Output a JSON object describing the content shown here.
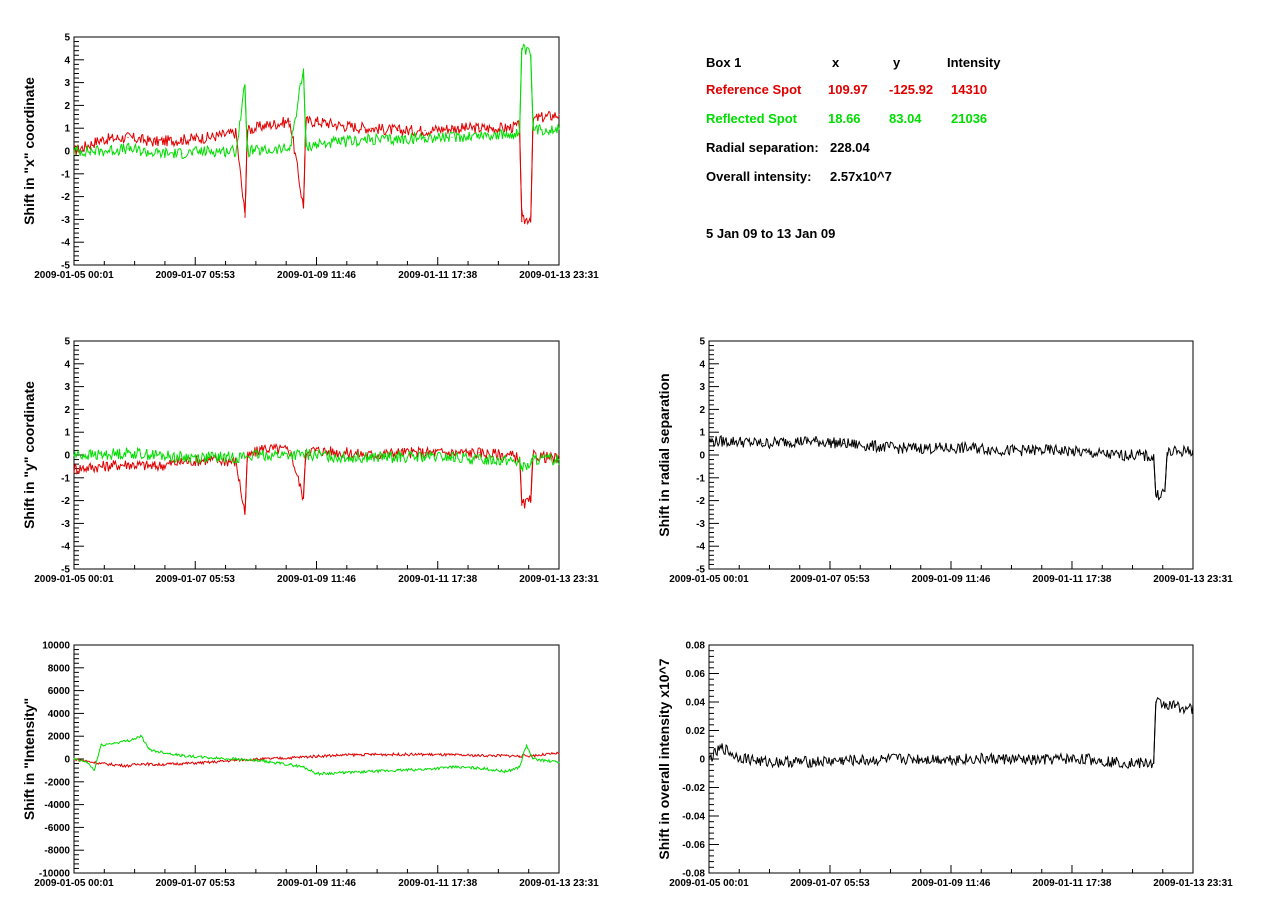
{
  "info": {
    "box_label": "Box 1",
    "col_x": "x",
    "col_y": "y",
    "col_intensity": "Intensity",
    "reference": {
      "label": "Reference Spot",
      "x": "109.97",
      "y": "-125.92",
      "intensity": "14310"
    },
    "reflected": {
      "label": "Reflected Spot",
      "x": "18.66",
      "y": "83.04",
      "intensity": "21036"
    },
    "radial_label": "Radial separation:",
    "radial_value": "228.04",
    "overall_label": "Overall intensity:",
    "overall_value": "2.57x10^7",
    "date_range": "5 Jan 09 to 13 Jan 09"
  },
  "colors": {
    "reference": "#e00000",
    "reflected": "#00dd00",
    "single": "#000000"
  },
  "chart_data": [
    {
      "id": "x-shift",
      "type": "line",
      "ylabel": "Shift in \"x\" coordinate",
      "ylim": [
        -5,
        5
      ],
      "yticks": [
        -5,
        -4,
        -3,
        -2,
        -1,
        0,
        1,
        2,
        3,
        4,
        5
      ],
      "xlim": [
        "2009-01-05 00:01",
        "2009-01-13 23:31"
      ],
      "xticks": [
        "2009-01-05 00:01",
        "2009-01-07 05:53",
        "2009-01-09 11:46",
        "2009-01-11 17:38",
        "2009-01-13 23:31"
      ],
      "series": [
        {
          "color": "#e00000",
          "points": [
            [
              "2009-01-05 00:01",
              0.0
            ],
            [
              "2009-01-05 12:00",
              0.5
            ],
            [
              "2009-01-06 00:00",
              0.6
            ],
            [
              "2009-01-06 12:00",
              0.4
            ],
            [
              "2009-01-07 00:00",
              0.5
            ],
            [
              "2009-01-07 12:00",
              0.6
            ],
            [
              "2009-01-08 00:00",
              0.8
            ],
            [
              "2009-01-08 04:00",
              -2.9
            ],
            [
              "2009-01-08 05:00",
              0.9
            ],
            [
              "2009-01-08 12:00",
              1.1
            ],
            [
              "2009-01-09 00:00",
              1.3
            ],
            [
              "2009-01-09 06:00",
              -2.5
            ],
            [
              "2009-01-09 07:00",
              1.3
            ],
            [
              "2009-01-09 12:00",
              1.3
            ],
            [
              "2009-01-10 00:00",
              1.1
            ],
            [
              "2009-01-10 12:00",
              1.0
            ],
            [
              "2009-01-11 00:00",
              0.9
            ],
            [
              "2009-01-11 12:00",
              0.9
            ],
            [
              "2009-01-12 00:00",
              1.0
            ],
            [
              "2009-01-12 12:00",
              1.0
            ],
            [
              "2009-01-13 00:00",
              1.0
            ],
            [
              "2009-01-13 06:00",
              1.1
            ],
            [
              "2009-01-13 07:00",
              -3.1
            ],
            [
              "2009-01-13 11:00",
              -2.9
            ],
            [
              "2009-01-13 12:00",
              1.4
            ],
            [
              "2009-01-13 23:31",
              1.6
            ]
          ]
        },
        {
          "color": "#00dd00",
          "points": [
            [
              "2009-01-05 00:01",
              0.0
            ],
            [
              "2009-01-05 12:00",
              0.0
            ],
            [
              "2009-01-06 00:00",
              0.1
            ],
            [
              "2009-01-06 12:00",
              -0.1
            ],
            [
              "2009-01-07 00:00",
              -0.1
            ],
            [
              "2009-01-07 12:00",
              0.0
            ],
            [
              "2009-01-08 00:00",
              0.0
            ],
            [
              "2009-01-08 04:00",
              2.9
            ],
            [
              "2009-01-08 05:00",
              0.0
            ],
            [
              "2009-01-08 12:00",
              0.0
            ],
            [
              "2009-01-09 00:00",
              0.1
            ],
            [
              "2009-01-09 06:00",
              3.6
            ],
            [
              "2009-01-09 07:00",
              0.2
            ],
            [
              "2009-01-09 12:00",
              0.3
            ],
            [
              "2009-01-10 00:00",
              0.4
            ],
            [
              "2009-01-10 12:00",
              0.5
            ],
            [
              "2009-01-11 00:00",
              0.5
            ],
            [
              "2009-01-11 12:00",
              0.6
            ],
            [
              "2009-01-12 00:00",
              0.6
            ],
            [
              "2009-01-12 12:00",
              0.7
            ],
            [
              "2009-01-13 00:00",
              0.7
            ],
            [
              "2009-01-13 06:00",
              0.8
            ],
            [
              "2009-01-13 07:00",
              4.5
            ],
            [
              "2009-01-13 11:00",
              4.2
            ],
            [
              "2009-01-13 12:00",
              0.9
            ],
            [
              "2009-01-13 23:31",
              1.0
            ]
          ]
        }
      ]
    },
    {
      "id": "y-shift",
      "type": "line",
      "ylabel": "Shift in \"y\" coordinate",
      "ylim": [
        -5,
        5
      ],
      "yticks": [
        -5,
        -4,
        -3,
        -2,
        -1,
        0,
        1,
        2,
        3,
        4,
        5
      ],
      "xlim": [
        "2009-01-05 00:01",
        "2009-01-13 23:31"
      ],
      "xticks": [
        "2009-01-05 00:01",
        "2009-01-07 05:53",
        "2009-01-09 11:46",
        "2009-01-11 17:38",
        "2009-01-13 23:31"
      ],
      "series": [
        {
          "color": "#e00000",
          "points": [
            [
              "2009-01-05 00:01",
              -0.6
            ],
            [
              "2009-01-05 12:00",
              -0.5
            ],
            [
              "2009-01-06 00:00",
              -0.4
            ],
            [
              "2009-01-06 12:00",
              -0.5
            ],
            [
              "2009-01-07 00:00",
              -0.3
            ],
            [
              "2009-01-07 12:00",
              -0.2
            ],
            [
              "2009-01-08 00:00",
              -0.3
            ],
            [
              "2009-01-08 04:00",
              -2.6
            ],
            [
              "2009-01-08 05:00",
              -0.1
            ],
            [
              "2009-01-08 12:00",
              0.3
            ],
            [
              "2009-01-09 00:00",
              0.2
            ],
            [
              "2009-01-09 06:00",
              -1.9
            ],
            [
              "2009-01-09 07:00",
              0.2
            ],
            [
              "2009-01-09 12:00",
              0.2
            ],
            [
              "2009-01-10 00:00",
              0.1
            ],
            [
              "2009-01-10 12:00",
              0.0
            ],
            [
              "2009-01-11 00:00",
              0.1
            ],
            [
              "2009-01-11 12:00",
              0.1
            ],
            [
              "2009-01-12 00:00",
              0.1
            ],
            [
              "2009-01-12 12:00",
              0.1
            ],
            [
              "2009-01-13 00:00",
              0.0
            ],
            [
              "2009-01-13 06:00",
              -0.1
            ],
            [
              "2009-01-13 07:00",
              -2.2
            ],
            [
              "2009-01-13 11:00",
              -2.0
            ],
            [
              "2009-01-13 12:00",
              0.0
            ],
            [
              "2009-01-13 23:31",
              -0.2
            ]
          ]
        },
        {
          "color": "#00dd00",
          "points": [
            [
              "2009-01-05 00:01",
              0.0
            ],
            [
              "2009-01-05 12:00",
              0.0
            ],
            [
              "2009-01-06 00:00",
              0.1
            ],
            [
              "2009-01-06 12:00",
              0.0
            ],
            [
              "2009-01-07 00:00",
              -0.1
            ],
            [
              "2009-01-07 12:00",
              -0.1
            ],
            [
              "2009-01-08 00:00",
              -0.1
            ],
            [
              "2009-01-08 12:00",
              0.0
            ],
            [
              "2009-01-09 00:00",
              0.0
            ],
            [
              "2009-01-09 12:00",
              0.0
            ],
            [
              "2009-01-10 00:00",
              -0.1
            ],
            [
              "2009-01-10 12:00",
              -0.1
            ],
            [
              "2009-01-11 00:00",
              -0.1
            ],
            [
              "2009-01-11 12:00",
              -0.1
            ],
            [
              "2009-01-12 00:00",
              -0.1
            ],
            [
              "2009-01-12 12:00",
              -0.2
            ],
            [
              "2009-01-13 00:00",
              -0.2
            ],
            [
              "2009-01-13 06:00",
              -0.3
            ],
            [
              "2009-01-13 07:00",
              -0.6
            ],
            [
              "2009-01-13 11:00",
              -0.4
            ],
            [
              "2009-01-13 12:00",
              -0.2
            ],
            [
              "2009-01-13 23:31",
              -0.2
            ]
          ]
        }
      ]
    },
    {
      "id": "radial-shift",
      "type": "line",
      "ylabel": "Shift in radial separation",
      "ylim": [
        -5,
        5
      ],
      "yticks": [
        -5,
        -4,
        -3,
        -2,
        -1,
        0,
        1,
        2,
        3,
        4,
        5
      ],
      "xlim": [
        "2009-01-05 00:01",
        "2009-01-13 23:31"
      ],
      "xticks": [
        "2009-01-05 00:01",
        "2009-01-07 05:53",
        "2009-01-09 11:46",
        "2009-01-11 17:38",
        "2009-01-13 23:31"
      ],
      "series": [
        {
          "color": "#000000",
          "points": [
            [
              "2009-01-05 00:01",
              0.6
            ],
            [
              "2009-01-05 12:00",
              0.6
            ],
            [
              "2009-01-06 00:00",
              0.5
            ],
            [
              "2009-01-06 12:00",
              0.6
            ],
            [
              "2009-01-07 00:00",
              0.6
            ],
            [
              "2009-01-07 12:00",
              0.5
            ],
            [
              "2009-01-08 00:00",
              0.4
            ],
            [
              "2009-01-08 12:00",
              0.3
            ],
            [
              "2009-01-09 00:00",
              0.3
            ],
            [
              "2009-01-09 12:00",
              0.3
            ],
            [
              "2009-01-10 00:00",
              0.3
            ],
            [
              "2009-01-10 12:00",
              0.2
            ],
            [
              "2009-01-11 00:00",
              0.2
            ],
            [
              "2009-01-11 12:00",
              0.2
            ],
            [
              "2009-01-12 00:00",
              0.1
            ],
            [
              "2009-01-12 12:00",
              0.0
            ],
            [
              "2009-01-13 00:00",
              0.0
            ],
            [
              "2009-01-13 06:00",
              -0.1
            ],
            [
              "2009-01-13 07:00",
              -1.8
            ],
            [
              "2009-01-13 11:00",
              -1.6
            ],
            [
              "2009-01-13 12:00",
              0.1
            ],
            [
              "2009-01-13 23:31",
              0.2
            ]
          ]
        }
      ]
    },
    {
      "id": "intensity-shift",
      "type": "line",
      "ylabel": "Shift in \"Intensity\"",
      "ylim": [
        -10000,
        10000
      ],
      "yticks": [
        -10000,
        -8000,
        -6000,
        -4000,
        -2000,
        0,
        2000,
        4000,
        6000,
        8000,
        10000
      ],
      "xlim": [
        "2009-01-05 00:01",
        "2009-01-13 23:31"
      ],
      "xticks": [
        "2009-01-05 00:01",
        "2009-01-07 05:53",
        "2009-01-09 11:46",
        "2009-01-11 17:38",
        "2009-01-13 23:31"
      ],
      "series": [
        {
          "color": "#e00000",
          "points": [
            [
              "2009-01-05 00:01",
              0
            ],
            [
              "2009-01-05 12:00",
              -400
            ],
            [
              "2009-01-06 00:00",
              -600
            ],
            [
              "2009-01-06 06:00",
              -400
            ],
            [
              "2009-01-06 12:00",
              -500
            ],
            [
              "2009-01-07 00:00",
              -400
            ],
            [
              "2009-01-07 12:00",
              -300
            ],
            [
              "2009-01-08 00:00",
              -100
            ],
            [
              "2009-01-08 12:00",
              0
            ],
            [
              "2009-01-09 00:00",
              100
            ],
            [
              "2009-01-09 12:00",
              250
            ],
            [
              "2009-01-10 00:00",
              350
            ],
            [
              "2009-01-10 12:00",
              400
            ],
            [
              "2009-01-11 00:00",
              400
            ],
            [
              "2009-01-11 12:00",
              400
            ],
            [
              "2009-01-12 00:00",
              350
            ],
            [
              "2009-01-12 12:00",
              300
            ],
            [
              "2009-01-13 00:00",
              300
            ],
            [
              "2009-01-13 06:00",
              250
            ],
            [
              "2009-01-13 12:00",
              300
            ],
            [
              "2009-01-13 23:31",
              500
            ]
          ]
        },
        {
          "color": "#00dd00",
          "points": [
            [
              "2009-01-05 00:01",
              0
            ],
            [
              "2009-01-05 06:00",
              -300
            ],
            [
              "2009-01-05 09:00",
              -1000
            ],
            [
              "2009-01-05 12:00",
              1200
            ],
            [
              "2009-01-06 00:00",
              1600
            ],
            [
              "2009-01-06 06:00",
              2000
            ],
            [
              "2009-01-06 09:00",
              900
            ],
            [
              "2009-01-06 12:00",
              700
            ],
            [
              "2009-01-07 00:00",
              300
            ],
            [
              "2009-01-07 12:00",
              100
            ],
            [
              "2009-01-08 00:00",
              0
            ],
            [
              "2009-01-08 12:00",
              -200
            ],
            [
              "2009-01-09 00:00",
              -500
            ],
            [
              "2009-01-09 06:00",
              -700
            ],
            [
              "2009-01-09 12:00",
              -1300
            ],
            [
              "2009-01-10 00:00",
              -1200
            ],
            [
              "2009-01-10 12:00",
              -1100
            ],
            [
              "2009-01-11 00:00",
              -1000
            ],
            [
              "2009-01-11 12:00",
              -900
            ],
            [
              "2009-01-12 00:00",
              -700
            ],
            [
              "2009-01-12 12:00",
              -800
            ],
            [
              "2009-01-13 00:00",
              -1100
            ],
            [
              "2009-01-13 06:00",
              -700
            ],
            [
              "2009-01-13 09:00",
              1200
            ],
            [
              "2009-01-13 12:00",
              0
            ],
            [
              "2009-01-13 23:31",
              -300
            ]
          ]
        }
      ]
    },
    {
      "id": "overall-intensity-shift",
      "type": "line",
      "ylabel": "Shift in overall intensity x10^7",
      "ylim": [
        -0.08,
        0.08
      ],
      "yticks": [
        -0.08,
        -0.06,
        -0.04,
        -0.02,
        0,
        0.02,
        0.04,
        0.06,
        0.08
      ],
      "xlim": [
        "2009-01-05 00:01",
        "2009-01-13 23:31"
      ],
      "xticks": [
        "2009-01-05 00:01",
        "2009-01-07 05:53",
        "2009-01-09 11:46",
        "2009-01-11 17:38",
        "2009-01-13 23:31"
      ],
      "series": [
        {
          "color": "#000000",
          "points": [
            [
              "2009-01-05 00:01",
              0.0
            ],
            [
              "2009-01-05 06:00",
              0.008
            ],
            [
              "2009-01-05 12:00",
              0.002
            ],
            [
              "2009-01-06 00:00",
              -0.002
            ],
            [
              "2009-01-06 12:00",
              -0.002
            ],
            [
              "2009-01-07 00:00",
              -0.002
            ],
            [
              "2009-01-07 12:00",
              -0.001
            ],
            [
              "2009-01-08 00:00",
              -0.001
            ],
            [
              "2009-01-08 12:00",
              0.0
            ],
            [
              "2009-01-09 00:00",
              0.0
            ],
            [
              "2009-01-09 12:00",
              0.0
            ],
            [
              "2009-01-10 00:00",
              0.0
            ],
            [
              "2009-01-10 12:00",
              0.0
            ],
            [
              "2009-01-11 00:00",
              -0.001
            ],
            [
              "2009-01-11 12:00",
              0.0
            ],
            [
              "2009-01-12 00:00",
              0.0
            ],
            [
              "2009-01-12 12:00",
              -0.002
            ],
            [
              "2009-01-13 00:00",
              -0.003
            ],
            [
              "2009-01-13 06:00",
              -0.003
            ],
            [
              "2009-01-13 07:00",
              0.04
            ],
            [
              "2009-01-13 12:00",
              0.038
            ],
            [
              "2009-01-13 23:31",
              0.035
            ]
          ]
        }
      ]
    }
  ]
}
